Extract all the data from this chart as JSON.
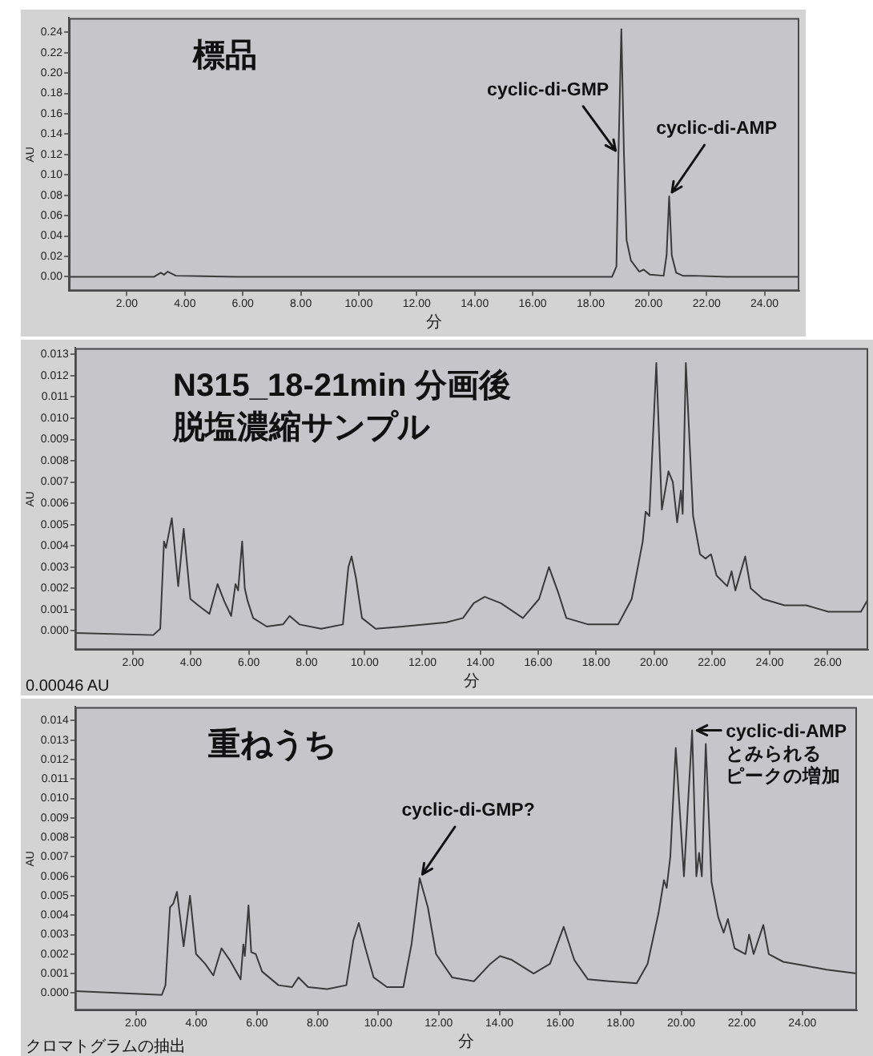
{
  "chart_data": [
    {
      "type": "line",
      "title": "標品",
      "xlabel": "分",
      "ylabel": "AU",
      "color": "#3a3a3a",
      "marker": "none",
      "x": [
        0,
        1.06,
        2.94,
        3.17,
        3.28,
        3.41,
        3.69,
        5.76,
        18.74,
        18.89,
        18.96,
        19.06,
        19.15,
        19.24,
        19.39,
        19.68,
        19.83,
        20.05,
        20.52,
        20.62,
        20.71,
        20.8,
        20.95,
        21.18,
        21.56,
        22.68,
        25.17
      ],
      "values": [
        0,
        0,
        0,
        0.004,
        0.002,
        0.005,
        0.001,
        0,
        0,
        0.01,
        0.12,
        0.243,
        0.12,
        0.036,
        0.016,
        0.005,
        0.007,
        0.002,
        0.001,
        0.021,
        0.079,
        0.021,
        0.004,
        0.001,
        0.001,
        0,
        0
      ],
      "xlim": [
        0,
        25.2
      ],
      "xticks": [
        {
          "value": 2,
          "label": "2.00"
        },
        {
          "value": 4,
          "label": "4.00"
        },
        {
          "value": 6,
          "label": "6.00"
        },
        {
          "value": 8,
          "label": "8.00"
        },
        {
          "value": 10,
          "label": "10.00"
        },
        {
          "value": 12,
          "label": "12.00"
        },
        {
          "value": 14,
          "label": "14.00"
        },
        {
          "value": 16,
          "label": "16.00"
        },
        {
          "value": 18,
          "label": "18.00"
        },
        {
          "value": 20,
          "label": "20.00"
        },
        {
          "value": 22,
          "label": "22.00"
        },
        {
          "value": 24,
          "label": "24.00"
        }
      ],
      "ylim": [
        -0.014,
        0.254
      ],
      "yticks": [
        {
          "value": 0,
          "label": "0.00"
        },
        0.02,
        0.04,
        0.06,
        0.08,
        {
          "value": 0.1,
          "label": "0.10"
        },
        0.12,
        0.14,
        0.16,
        0.18,
        {
          "value": 0.2,
          "label": "0.20"
        },
        0.22,
        0.24
      ],
      "annotations": [
        {
          "text": "cyclic-di-GMP",
          "x": 18.96,
          "y": 0.12
        },
        {
          "text": "cyclic-di-AMP",
          "x": 20.71,
          "y": 0.079
        }
      ]
    },
    {
      "type": "line",
      "title": "N315_18-21min 分画後",
      "subtitle": "脱塩濃縮サンプル",
      "xlabel": "分",
      "ylabel": "AU",
      "color": "#3a3a3a",
      "marker": "none",
      "x": [
        0,
        2.7,
        2.94,
        3.07,
        3.14,
        3.34,
        3.56,
        3.75,
        3.98,
        4.25,
        4.64,
        4.92,
        5.15,
        5.39,
        5.54,
        5.63,
        5.77,
        5.86,
        5.96,
        6.15,
        6.62,
        7.18,
        7.41,
        7.75,
        8.5,
        9.25,
        9.44,
        9.55,
        9.7,
        9.91,
        10.38,
        11.32,
        12.83,
        13.4,
        13.77,
        14.15,
        14.71,
        15.47,
        16.03,
        16.37,
        16.69,
        16.97,
        17.73,
        18.76,
        19.23,
        19.61,
        19.71,
        19.84,
        20.08,
        20.27,
        20.5,
        20.65,
        20.8,
        20.93,
        20.99,
        21.1,
        21.35,
        21.59,
        21.78,
        21.97,
        22.16,
        22.53,
        22.68,
        22.81,
        23.15,
        23.34,
        23.76,
        24.51,
        25.26,
        26.02,
        27.15,
        27.4
      ],
      "values": [
        -0.0001,
        -0.0002,
        0.0001,
        0.0042,
        0.0039,
        0.0053,
        0.0021,
        0.0048,
        0.0015,
        0.0012,
        0.0008,
        0.0022,
        0.0014,
        0.0007,
        0.0022,
        0.0019,
        0.0042,
        0.002,
        0.0014,
        0.0006,
        0.0002,
        0.0003,
        0.0007,
        0.0003,
        0.0001,
        0.0003,
        0.003,
        0.0035,
        0.0025,
        0.0006,
        0.0001,
        0.0002,
        0.0004,
        0.0006,
        0.0013,
        0.0016,
        0.0013,
        0.0006,
        0.0015,
        0.003,
        0.0018,
        0.0006,
        0.0003,
        0.0003,
        0.0015,
        0.0042,
        0.0056,
        0.0054,
        0.0126,
        0.0057,
        0.0075,
        0.007,
        0.0051,
        0.0066,
        0.0055,
        0.0126,
        0.0054,
        0.0036,
        0.0034,
        0.0036,
        0.0026,
        0.0021,
        0.0028,
        0.0019,
        0.0035,
        0.002,
        0.0015,
        0.0012,
        0.0012,
        0.0009,
        0.0009,
        0.0015
      ],
      "xlim": [
        0,
        27.4
      ],
      "xticks": [
        {
          "value": 2,
          "label": "2.00"
        },
        {
          "value": 4,
          "label": "4.00"
        },
        {
          "value": 6,
          "label": "6.00"
        },
        {
          "value": 8,
          "label": "8.00"
        },
        {
          "value": 10,
          "label": "10.00"
        },
        {
          "value": 12,
          "label": "12.00"
        },
        {
          "value": 14,
          "label": "14.00"
        },
        {
          "value": 16,
          "label": "16.00"
        },
        {
          "value": 18,
          "label": "18.00"
        },
        {
          "value": 20,
          "label": "20.00"
        },
        {
          "value": 22,
          "label": "22.00"
        },
        {
          "value": 24,
          "label": "24.00"
        },
        {
          "value": 26,
          "label": "26.00"
        }
      ],
      "ylim": [
        -0.0009,
        0.0133
      ],
      "yticks": [
        {
          "value": 0,
          "label": "0.000"
        },
        0.001,
        0.002,
        0.003,
        0.004,
        0.005,
        0.006,
        0.007,
        0.008,
        0.009,
        {
          "value": 0.01,
          "label": "0.010"
        },
        0.011,
        0.012,
        0.013
      ],
      "annotations": [
        "0.00046 AU"
      ]
    },
    {
      "type": "line",
      "title": "重ねうち",
      "xlabel": "分",
      "ylabel": "AU",
      "color": "#3a3a3a",
      "marker": "none",
      "x": [
        0,
        2.86,
        2.98,
        3.13,
        3.24,
        3.36,
        3.58,
        3.79,
        3.99,
        4.29,
        4.56,
        4.83,
        5.1,
        5.46,
        5.55,
        5.6,
        5.72,
        5.81,
        5.96,
        6.17,
        6.71,
        7.16,
        7.37,
        7.69,
        8.32,
        8.95,
        9.18,
        9.36,
        9.58,
        9.85,
        10.29,
        10.83,
        11.1,
        11.37,
        11.64,
        11.91,
        12.44,
        13.16,
        13.7,
        14.02,
        14.41,
        15.13,
        15.67,
        16.12,
        16.47,
        16.92,
        17.64,
        18.53,
        18.89,
        19.25,
        19.43,
        19.52,
        19.64,
        19.82,
        20.09,
        20.36,
        20.5,
        20.59,
        20.68,
        20.81,
        21.0,
        21.22,
        21.4,
        21.54,
        21.76,
        22.12,
        22.24,
        22.39,
        22.71,
        22.89,
        23.37,
        24.09,
        24.8,
        25.79
      ],
      "values": [
        0.0001,
        -0.0001,
        0.0004,
        0.0044,
        0.0046,
        0.0052,
        0.0024,
        0.005,
        0.002,
        0.0015,
        0.0009,
        0.0023,
        0.0017,
        0.0007,
        0.0025,
        0.0019,
        0.0045,
        0.0021,
        0.002,
        0.0011,
        0.0004,
        0.0003,
        0.0008,
        0.0003,
        0.0002,
        0.0004,
        0.0027,
        0.0036,
        0.0023,
        0.0008,
        0.0003,
        0.0003,
        0.0025,
        0.0059,
        0.0044,
        0.002,
        0.0008,
        0.0006,
        0.0015,
        0.0019,
        0.0017,
        0.001,
        0.0015,
        0.0034,
        0.0017,
        0.0007,
        0.0006,
        0.0005,
        0.0015,
        0.0041,
        0.0058,
        0.0054,
        0.007,
        0.0126,
        0.006,
        0.0135,
        0.006,
        0.0072,
        0.006,
        0.0128,
        0.0057,
        0.0039,
        0.0031,
        0.0038,
        0.0023,
        0.002,
        0.003,
        0.002,
        0.0035,
        0.002,
        0.0016,
        0.0014,
        0.0012,
        0.001
      ],
      "xlim": [
        0,
        25.8
      ],
      "xticks": [
        {
          "value": 2,
          "label": "2.00"
        },
        {
          "value": 4,
          "label": "4.00"
        },
        {
          "value": 6,
          "label": "6.00"
        },
        {
          "value": 8,
          "label": "8.00"
        },
        {
          "value": 10,
          "label": "10.00"
        },
        {
          "value": 12,
          "label": "12.00"
        },
        {
          "value": 14,
          "label": "14.00"
        },
        {
          "value": 16,
          "label": "16.00"
        },
        {
          "value": 18,
          "label": "18.00"
        },
        {
          "value": 20,
          "label": "20.00"
        },
        {
          "value": 22,
          "label": "22.00"
        },
        {
          "value": 24,
          "label": "24.00"
        }
      ],
      "ylim": [
        -0.0009,
        0.0147
      ],
      "yticks": [
        {
          "value": 0,
          "label": "0.000"
        },
        0.001,
        0.002,
        0.003,
        0.004,
        0.005,
        0.006,
        0.007,
        0.008,
        0.009,
        {
          "value": 0.01,
          "label": "0.010"
        },
        0.011,
        0.012,
        0.013,
        0.014
      ],
      "annotations": [
        {
          "text": "cyclic-di-GMP?",
          "x": 11.37,
          "y": 0.0059
        },
        {
          "text": "cyclic-di-AMPとみられるピークの増加",
          "x": 20.36,
          "y": 0.0135
        },
        "クロマトグラムの抽出"
      ]
    }
  ]
}
